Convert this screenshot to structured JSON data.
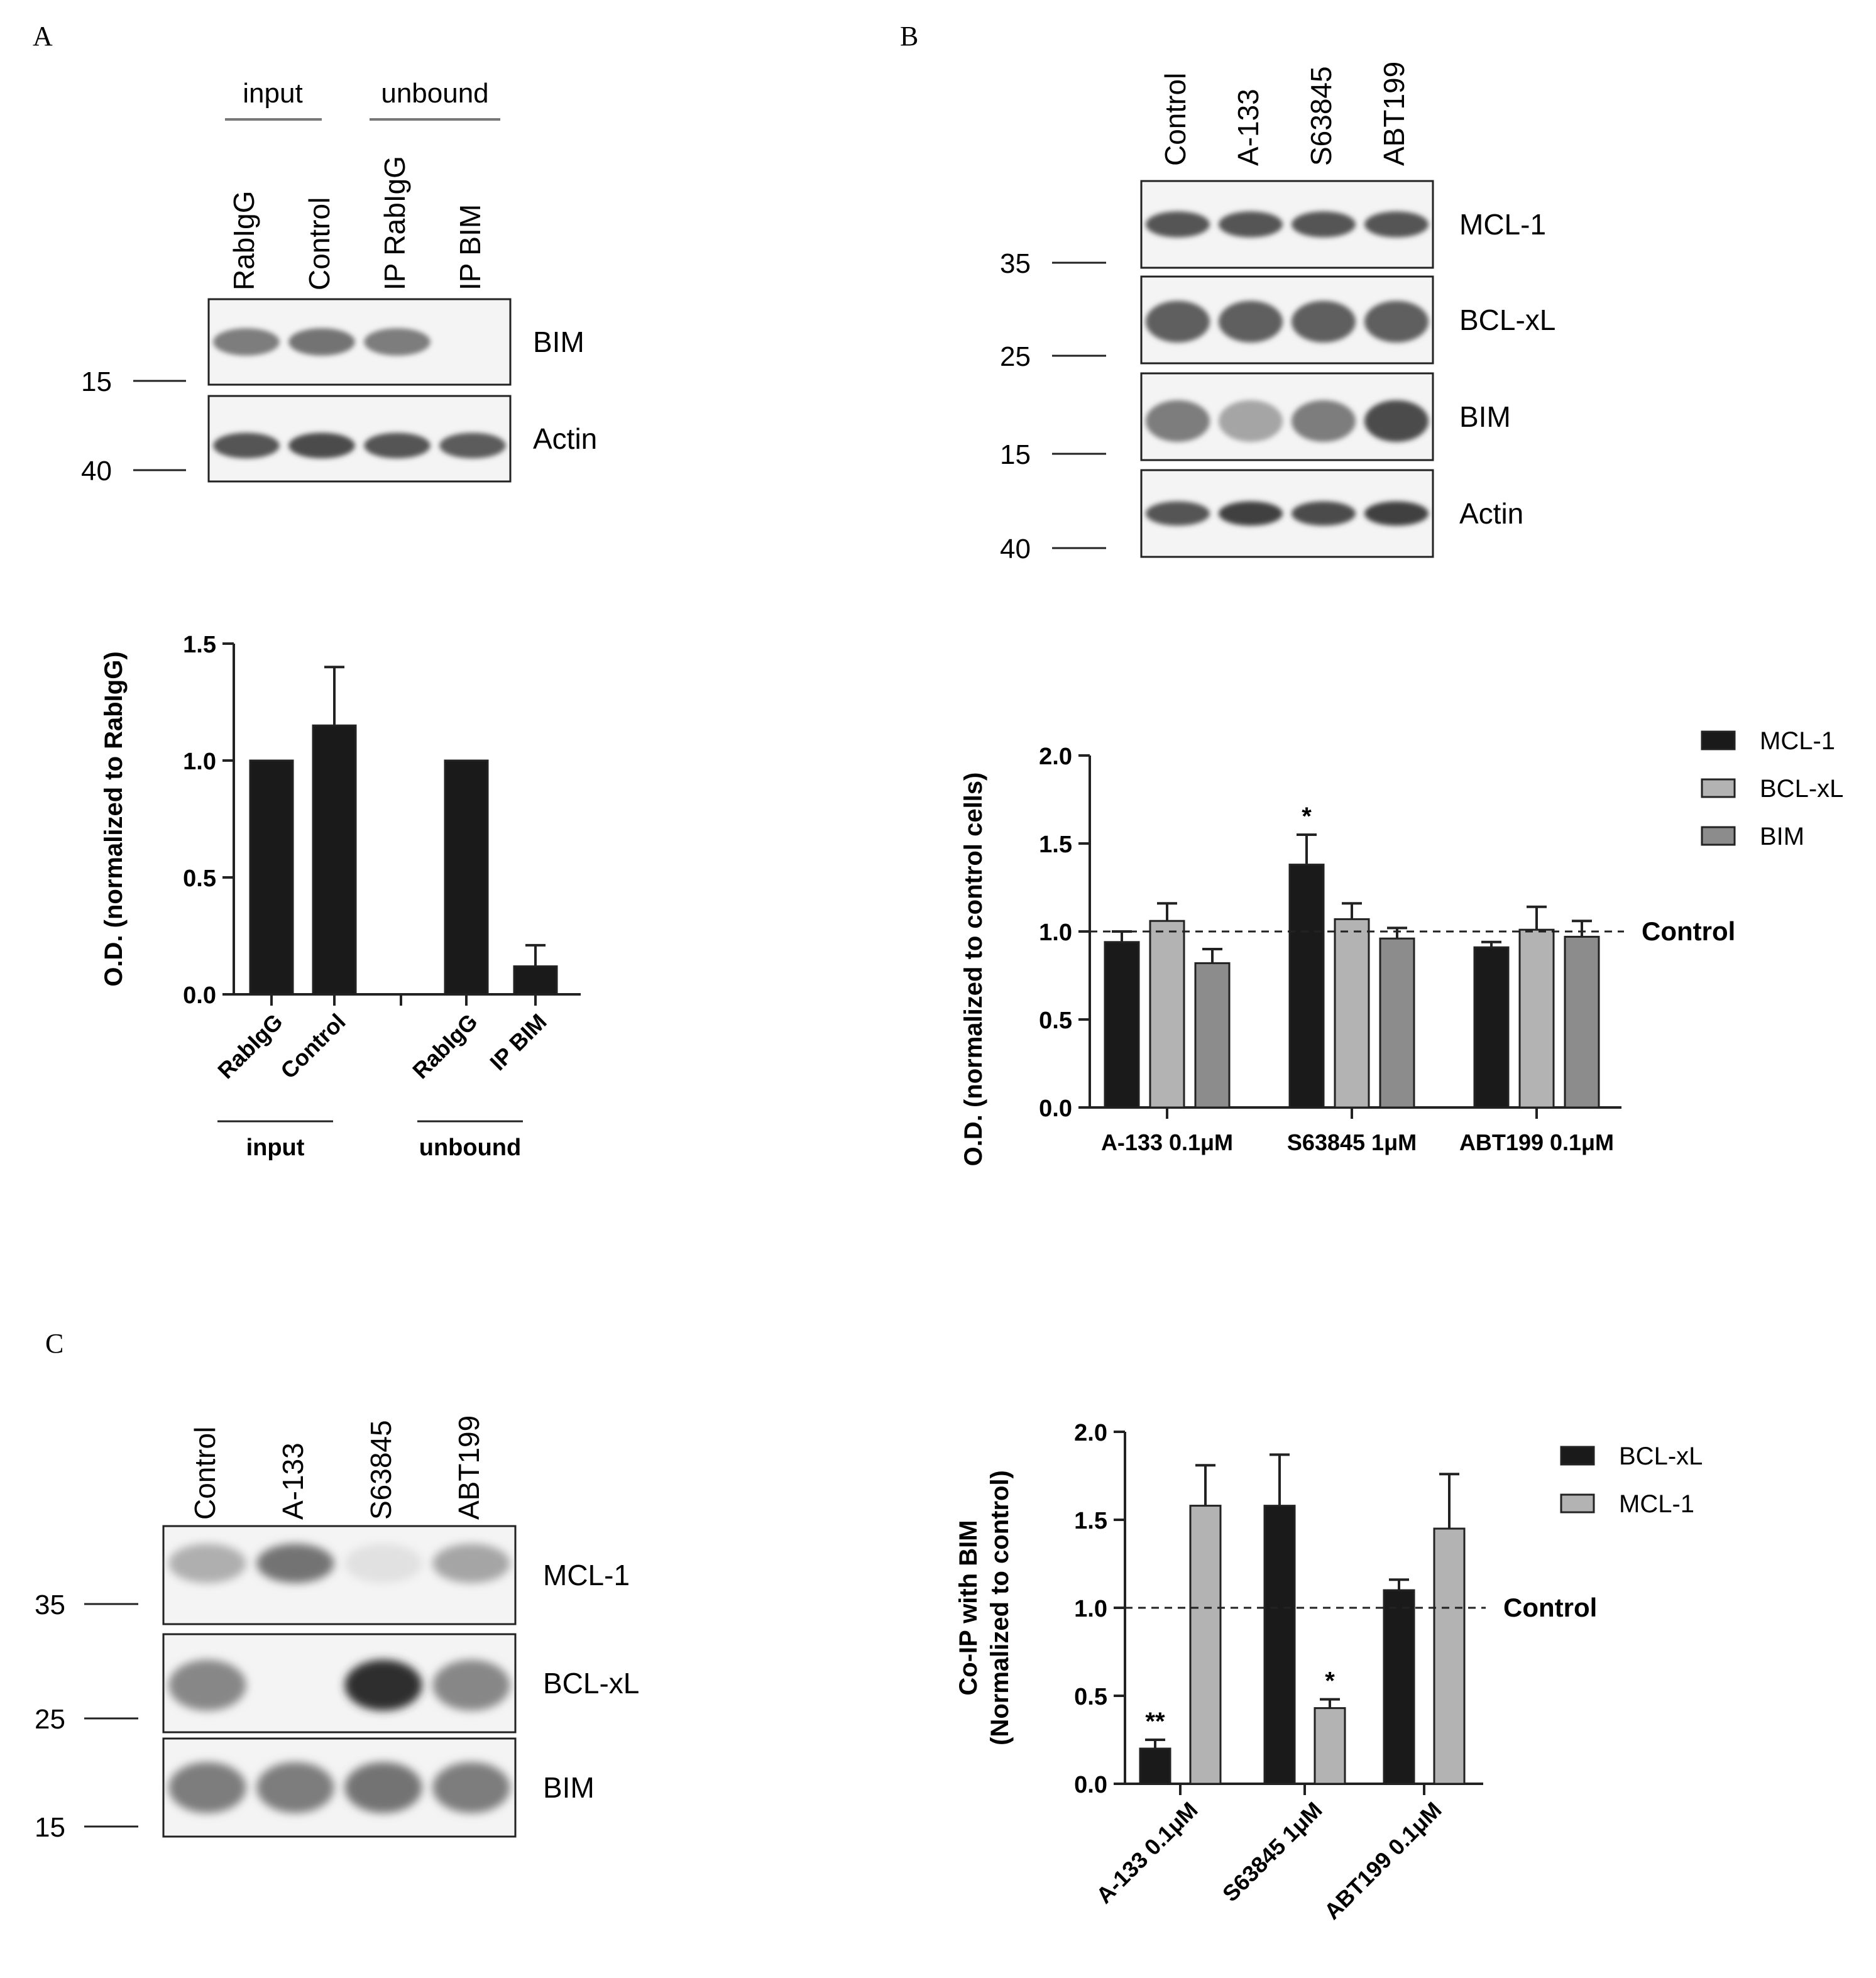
{
  "panels": {
    "a": {
      "letter": "A",
      "blot": {
        "group_labels": [
          "input",
          "unbound"
        ],
        "lanes": [
          "RabIgG",
          "Control",
          "IP RabIgG",
          "IP BIM"
        ],
        "bands": [
          "BIM",
          "Actin"
        ],
        "markers": [
          "15",
          "40"
        ],
        "intensity": [
          [
            0.55,
            0.6,
            0.55,
            0.0
          ],
          [
            0.75,
            0.8,
            0.75,
            0.72
          ]
        ]
      }
    },
    "b": {
      "letter": "B",
      "blot": {
        "lanes": [
          "Control",
          "A-133",
          "S63845",
          "ABT199"
        ],
        "bands": [
          "MCL-1",
          "BCL-xL",
          "BIM",
          "Actin"
        ],
        "markers": [
          "35",
          "25",
          "15",
          "40"
        ],
        "intensity": [
          [
            0.75,
            0.75,
            0.75,
            0.75
          ],
          [
            0.7,
            0.7,
            0.7,
            0.7
          ],
          [
            0.55,
            0.35,
            0.55,
            0.8
          ],
          [
            0.75,
            0.85,
            0.8,
            0.85
          ]
        ]
      }
    },
    "c": {
      "letter": "C",
      "blot": {
        "lanes": [
          "Control",
          "A-133",
          "S63845",
          "ABT199"
        ],
        "bands": [
          "MCL-1",
          "BCL-xL",
          "BIM"
        ],
        "markers": [
          "35",
          "25",
          "15"
        ],
        "intensity": [
          [
            0.3,
            0.6,
            0.05,
            0.35
          ],
          [
            0.5,
            0.0,
            0.95,
            0.5
          ],
          [
            0.55,
            0.55,
            0.6,
            0.55
          ]
        ]
      }
    }
  },
  "chart_data": [
    {
      "id": "chart-a",
      "type": "bar",
      "ylabel": "O.D. (normalized to RabIgG)",
      "ylim": [
        0,
        1.5
      ],
      "yticks": [
        "0.0",
        "0.5",
        "1.0",
        "1.5"
      ],
      "categories": [
        "RabIgG",
        "Control",
        "RabIgG",
        "IP BIM"
      ],
      "values": [
        1.0,
        1.15,
        1.0,
        0.12
      ],
      "errors": [
        0.0,
        0.25,
        0.0,
        0.09
      ],
      "groups": [
        "input",
        "unbound"
      ],
      "color": "#1a1a1a"
    },
    {
      "id": "chart-b",
      "type": "bar",
      "ylabel": "O.D. (normalized to control cells)",
      "ylim": [
        0,
        2.0
      ],
      "yticks": [
        "0.0",
        "0.5",
        "1.0",
        "1.5",
        "2.0"
      ],
      "categories": [
        "A-133 0.1μM",
        "S63845 1μM",
        "ABT199 0.1μM"
      ],
      "series": [
        {
          "name": "MCL-1",
          "color": "#1a1a1a",
          "values": [
            0.94,
            1.38,
            0.91
          ],
          "errors": [
            0.06,
            0.17,
            0.03
          ]
        },
        {
          "name": "BCL-xL",
          "color": "#b3b3b3",
          "values": [
            1.06,
            1.07,
            1.01
          ],
          "errors": [
            0.1,
            0.09,
            0.13
          ]
        },
        {
          "name": "BIM",
          "color": "#8c8c8c",
          "values": [
            0.82,
            0.96,
            0.97
          ],
          "errors": [
            0.08,
            0.06,
            0.09
          ]
        }
      ],
      "reference": {
        "value": 1.0,
        "label": "Control"
      },
      "annotations": [
        {
          "category": 1,
          "series": 0,
          "text": "*"
        }
      ],
      "legend": "top-right"
    },
    {
      "id": "chart-c",
      "type": "bar",
      "ylabel_lines": [
        "Co-IP with BIM",
        "(Normalized to control)"
      ],
      "ylim": [
        0,
        2.0
      ],
      "yticks": [
        "0.0",
        "0.5",
        "1.0",
        "1.5",
        "2.0"
      ],
      "categories": [
        "A-133 0.1μM",
        "S63845 1μM",
        "ABT199 0.1μM"
      ],
      "series": [
        {
          "name": "BCL-xL",
          "color": "#1a1a1a",
          "values": [
            0.2,
            1.58,
            1.1
          ],
          "errors": [
            0.05,
            0.29,
            0.06
          ]
        },
        {
          "name": "MCL-1",
          "color": "#b3b3b3",
          "values": [
            1.58,
            0.43,
            1.45
          ],
          "errors": [
            0.23,
            0.05,
            0.31
          ]
        }
      ],
      "reference": {
        "value": 1.0,
        "label": "Control"
      },
      "annotations": [
        {
          "category": 0,
          "series": 0,
          "text": "**"
        },
        {
          "category": 1,
          "series": 1,
          "text": "*"
        }
      ],
      "legend": "top-right"
    }
  ]
}
